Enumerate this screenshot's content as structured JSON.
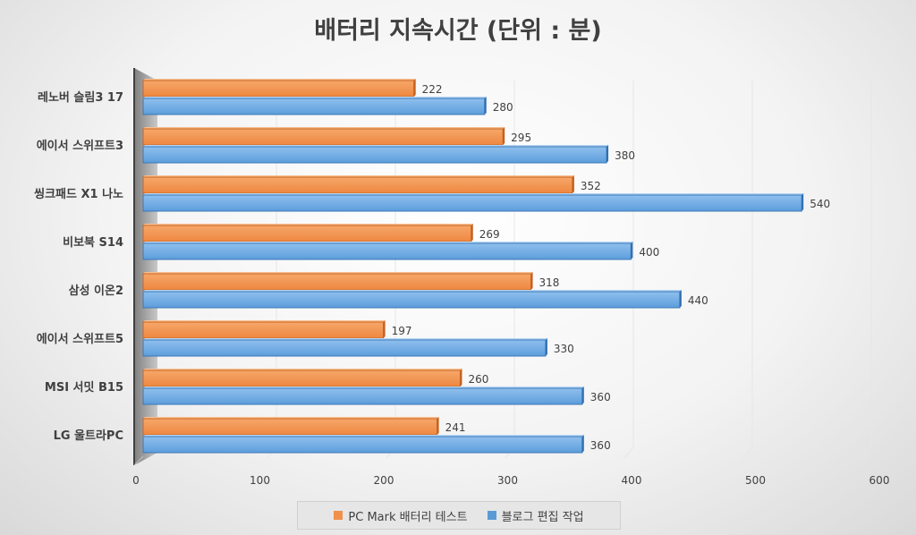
{
  "chart_data": {
    "type": "bar",
    "orientation": "horizontal",
    "title": "배터리 지속시간 (단위 : 분)",
    "categories": [
      "레노버 슬림3 17",
      "에이서 스위프트3",
      "씽크패드 X1 나노",
      "비보북 S14",
      "삼성 이온2",
      "에이서 스위프트5",
      "MSI 서밋 B15",
      "LG 울트라PC"
    ],
    "series": [
      {
        "name": "PC Mark 배터리 테스트",
        "color": "#f0904a",
        "values": [
          222,
          295,
          352,
          269,
          318,
          197,
          260,
          241
        ]
      },
      {
        "name": "블로그 편집 작업",
        "color": "#5b9bd5",
        "values": [
          280,
          380,
          540,
          400,
          440,
          330,
          360,
          360
        ]
      }
    ],
    "xlim": [
      0,
      600
    ],
    "xticks": [
      "0",
      "100",
      "200",
      "300",
      "400",
      "500",
      "600"
    ],
    "legend_position": "bottom"
  }
}
